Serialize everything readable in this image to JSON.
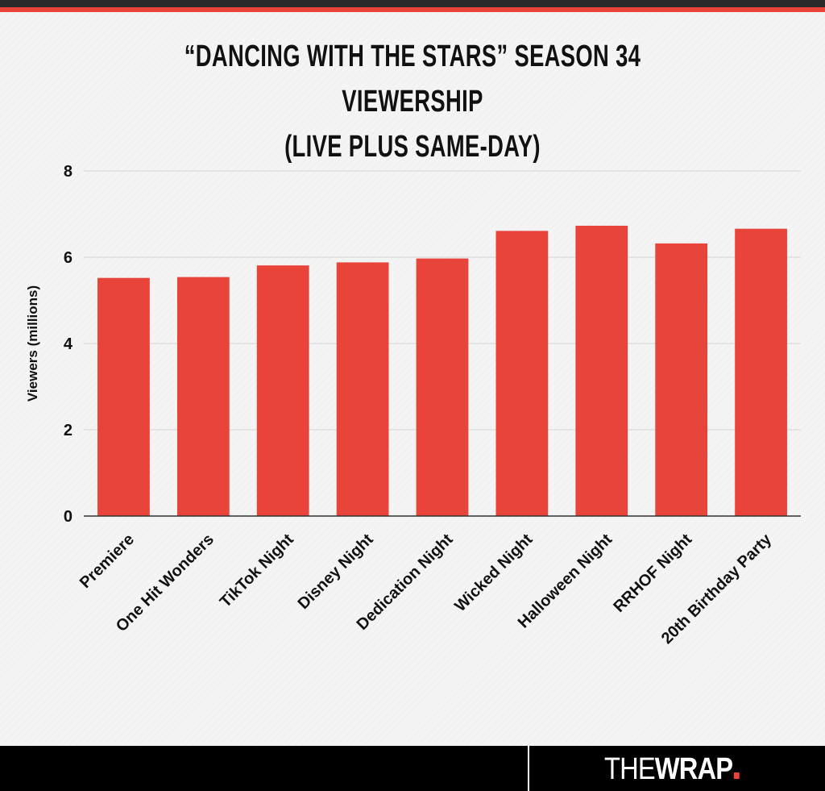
{
  "header": {
    "title_line1": "“DANCING WITH THE STARS” SEASON 34 VIEWERSHIP",
    "title_line2": "(LIVE PLUS SAME-DAY)"
  },
  "colors": {
    "bar": "#e8443a",
    "accent_bar": "#e8443a",
    "top_bar": "#2a2a2a",
    "footer": "#000000"
  },
  "chart_data": {
    "type": "bar",
    "title": "“DANCING WITH THE STARS” SEASON 34 VIEWERSHIP (LIVE PLUS SAME-DAY)",
    "xlabel": "",
    "ylabel": "Viewers (millions)",
    "ylim": [
      0,
      8
    ],
    "yticks": [
      "0",
      "2",
      "4",
      "6",
      "8"
    ],
    "grid": true,
    "categories": [
      "Premiere",
      "One Hit Wonders",
      "TikTok Night",
      "Disney Night",
      "Dedication Night",
      "Wicked Night",
      "Halloween Night",
      "RRHOF Night",
      "20th Birthday Party"
    ],
    "values": [
      5.52,
      5.54,
      5.81,
      5.88,
      5.97,
      6.61,
      6.73,
      6.32,
      6.66
    ]
  },
  "footer": {
    "logo_the": "THE",
    "logo_wrap": "WRAP"
  }
}
